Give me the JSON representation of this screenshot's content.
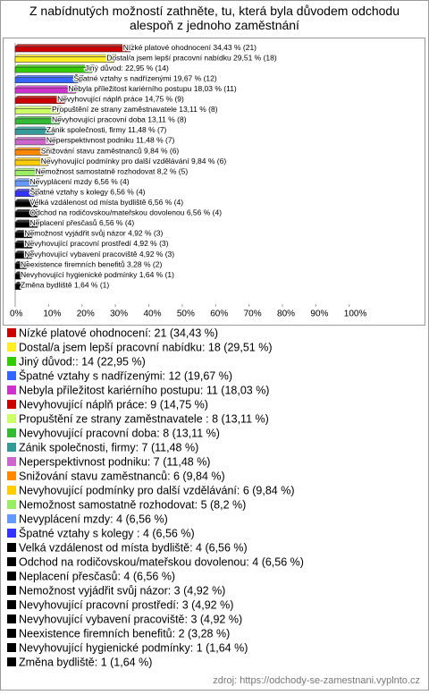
{
  "chart_data": {
    "type": "bar",
    "orientation": "horizontal",
    "title": "Z nabídnutých možností zathněte, tu, která byla důvodem odchodu alespoň z jednoho zaměstnání",
    "values": [
      34.43,
      29.51,
      22.95,
      19.67,
      18.03,
      14.75,
      13.11,
      13.11,
      11.48,
      11.48,
      9.84,
      9.84,
      8.2,
      6.56,
      6.56,
      6.56,
      6.56,
      6.56,
      4.92,
      4.92,
      4.92,
      3.28,
      1.64,
      1.64
    ],
    "value_labels": [
      "Nízké platové ohodnocení 34,43 % (21)",
      "Dostal/a jsem lepší pracovní nabídku 29,51 % (18)",
      "Jiný důvod: 22,95 % (14)",
      "Špatné vztahy s nadřízenými 19,67 % (12)",
      "Nebyla příležitost kariérního postupu 18,03 % (11)",
      "Nevyhovující náplň práce 14,75 % (9)",
      "Propuštění ze strany zaměstnavatele  13,11 % (8)",
      "Nevyhovující pracovní doba 13,11 % (8)",
      "Zánik společnosti, firmy 11,48 % (7)",
      "Neperspektivnost podniku 11,48 % (7)",
      "Snižování stavu zaměstnanců 9,84 % (6)",
      "Nevyhovující podmínky pro další vzdělávání 9,84 % (6)",
      "Nemožnost samostatně rozhodovat 8,2 % (5)",
      "Nevyplácení mzdy 6,56 % (4)",
      "Špatné vztahy s kolegy  6,56 % (4)",
      "Velká vzdálenost od místa bydliště 6,56 % (4)",
      "Odchod na rodičovskou/mateřskou dovolenou 6,56 % (4)",
      "Neplacení přesčasů 6,56 % (4)",
      "Nemožnost vyjádřit svůj názor 4,92 % (3)",
      "Nevyhovující pracovní prostředí 4,92 % (3)",
      "Nevyhovující vybavení pracoviště 4,92 % (3)",
      "Neexistence firemních benefitů 3,28 % (2)",
      "Nevyhovující hygienické podmínky 1,64 % (1)",
      "Změna bydliště 1,64 % (1)"
    ],
    "legend_labels": [
      "Nízké platové ohodnocení: 21 (34,43 %)",
      "Dostal/a jsem lepší pracovní nabídku: 18 (29,51 %)",
      "Jiný důvod:: 14 (22,95 %)",
      "Špatné vztahy s nadřízenými: 12 (19,67 %)",
      "Nebyla příležitost kariérního postupu: 11 (18,03 %)",
      "Nevyhovující náplň práce: 9 (14,75 %)",
      "Propuštění ze strany zaměstnavatele : 8 (13,11 %)",
      "Nevyhovující pracovní doba: 8 (13,11 %)",
      "Zánik společnosti, firmy: 7 (11,48 %)",
      "Neperspektivnost podniku: 7 (11,48 %)",
      "Snižování stavu zaměstnanců: 6 (9,84 %)",
      "Nevyhovující podmínky pro další vzdělávání: 6 (9,84 %)",
      "Nemožnost samostatně rozhodovat: 5 (8,2 %)",
      "Nevyplácení mzdy: 4 (6,56 %)",
      "Špatné vztahy s kolegy : 4 (6,56 %)",
      "Velká vzdálenost od místa bydliště: 4 (6,56 %)",
      "Odchod na rodičovskou/mateřskou dovolenou: 4 (6,56 %)",
      "Neplacení přesčasů: 4 (6,56 %)",
      "Nemožnost vyjádřit svůj názor: 3 (4,92 %)",
      "Nevyhovující pracovní prostředí: 3 (4,92 %)",
      "Nevyhovující vybavení pracoviště: 3 (4,92 %)",
      "Neexistence firemních benefitů: 2 (3,28 %)",
      "Nevyhovující hygienické podmínky: 1 (1,64 %)",
      "Změna bydliště: 1 (1,64 %)"
    ],
    "colors": [
      "#cc0000",
      "#ffee22",
      "#33cc00",
      "#3366ff",
      "#cc33cc",
      "#cc0000",
      "#ccff66",
      "#33bb33",
      "#339999",
      "#cc66cc",
      "#ff8800",
      "#ffcc00",
      "#99ee66",
      "#6699ff",
      "#3333ff",
      "#000000",
      "#000000",
      "#000000",
      "#000000",
      "#000000",
      "#000000",
      "#000000",
      "#000000",
      "#000000"
    ],
    "xlim": [
      0,
      122
    ],
    "xticks": [
      {
        "value": 0,
        "label": "0%"
      },
      {
        "value": 10,
        "label": "10%"
      },
      {
        "value": 20,
        "label": "20%"
      },
      {
        "value": 30,
        "label": "30%"
      },
      {
        "value": 40,
        "label": "40%"
      },
      {
        "value": 50,
        "label": "50%"
      },
      {
        "value": 60,
        "label": "60%"
      },
      {
        "value": 70,
        "label": "70%"
      },
      {
        "value": 80,
        "label": "80%"
      },
      {
        "value": 90,
        "label": "90%"
      },
      {
        "value": 100,
        "label": "100%"
      }
    ],
    "source": "zdroj: https://odchody-se-zamestnani.vyplnto.cz"
  }
}
